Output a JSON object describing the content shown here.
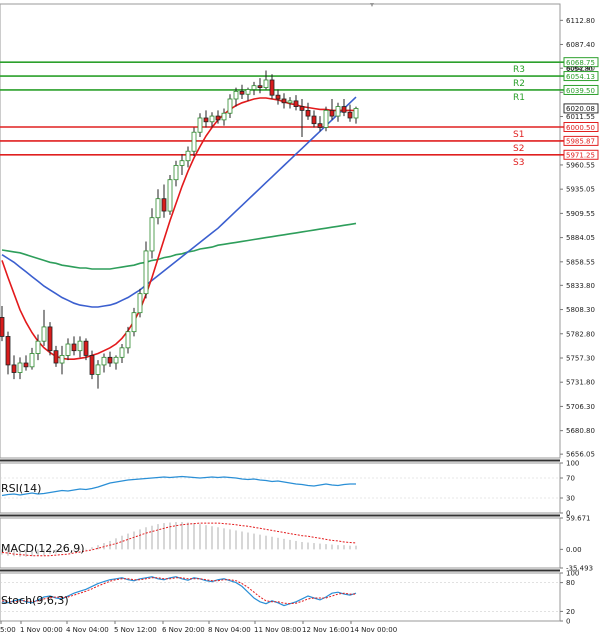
{
  "chart_data": [
    {
      "type": "candlestick",
      "panel": "price",
      "y_ticks": [
        6112.8,
        6087.4,
        6062.4,
        6037.0,
        6011.55,
        5986.1,
        5960.55,
        5935.05,
        5909.55,
        5884.05,
        5858.55,
        5833.8,
        5808.3,
        5782.8,
        5757.3,
        5731.8,
        5706.3,
        5680.8,
        5656.05
      ],
      "ylim": [
        5652,
        6130
      ],
      "levels": [
        {
          "name": "R3",
          "value": 6068.75,
          "label": "6068.75",
          "color": "#2ca02c"
        },
        {
          "name": "R2",
          "value": 6054.13,
          "label": "6054.13",
          "color": "#2ca02c"
        },
        {
          "name": "R1",
          "value": 6039.5,
          "label": "6039.50",
          "color": "#2ca02c"
        },
        {
          "name": "S1",
          "value": 6000.5,
          "label": "6000.50",
          "color": "#e02020"
        },
        {
          "name": "S2",
          "value": 5985.87,
          "label": "5985.87",
          "color": "#e02020"
        },
        {
          "name": "S3",
          "value": 5971.25,
          "label": "5971.25",
          "color": "#e02020"
        }
      ],
      "current_price": "6020.08",
      "extra_price_label": "6054.80",
      "candles_ohlc": [
        [
          5800,
          5812,
          5775,
          5780
        ],
        [
          5780,
          5785,
          5740,
          5750
        ],
        [
          5750,
          5760,
          5735,
          5742
        ],
        [
          5742,
          5758,
          5735,
          5752
        ],
        [
          5752,
          5760,
          5744,
          5748
        ],
        [
          5748,
          5768,
          5745,
          5762
        ],
        [
          5762,
          5782,
          5755,
          5775
        ],
        [
          5775,
          5808,
          5770,
          5790
        ],
        [
          5790,
          5795,
          5760,
          5765
        ],
        [
          5765,
          5770,
          5748,
          5752
        ],
        [
          5752,
          5770,
          5740,
          5760
        ],
        [
          5760,
          5778,
          5755,
          5772
        ],
        [
          5772,
          5780,
          5760,
          5765
        ],
        [
          5765,
          5780,
          5758,
          5775
        ],
        [
          5775,
          5778,
          5755,
          5760
        ],
        [
          5760,
          5765,
          5735,
          5740
        ],
        [
          5740,
          5755,
          5725,
          5750
        ],
        [
          5750,
          5762,
          5742,
          5758
        ],
        [
          5758,
          5764,
          5748,
          5752
        ],
        [
          5752,
          5760,
          5745,
          5758
        ],
        [
          5758,
          5772,
          5752,
          5768
        ],
        [
          5768,
          5790,
          5762,
          5785
        ],
        [
          5785,
          5810,
          5780,
          5805
        ],
        [
          5805,
          5830,
          5800,
          5825
        ],
        [
          5825,
          5880,
          5820,
          5870
        ],
        [
          5870,
          5915,
          5862,
          5905
        ],
        [
          5905,
          5935,
          5898,
          5925
        ],
        [
          5925,
          5940,
          5905,
          5912
        ],
        [
          5912,
          5950,
          5908,
          5945
        ],
        [
          5945,
          5965,
          5938,
          5960
        ],
        [
          5960,
          5972,
          5950,
          5965
        ],
        [
          5965,
          5980,
          5958,
          5975
        ],
        [
          5975,
          6000,
          5970,
          5995
        ],
        [
          5995,
          6015,
          5990,
          6010
        ],
        [
          6010,
          6018,
          6000,
          6006
        ],
        [
          6006,
          6016,
          6000,
          6012
        ],
        [
          6012,
          6018,
          6004,
          6008
        ],
        [
          6008,
          6020,
          6002,
          6015
        ],
        [
          6015,
          6035,
          6010,
          6030
        ],
        [
          6030,
          6042,
          6022,
          6038
        ],
        [
          6038,
          6045,
          6030,
          6035
        ],
        [
          6035,
          6042,
          6028,
          6040
        ],
        [
          6040,
          6048,
          6034,
          6044
        ],
        [
          6044,
          6052,
          6036,
          6042
        ],
        [
          6042,
          6060,
          6040,
          6050
        ],
        [
          6050,
          6056,
          6030,
          6034
        ],
        [
          6034,
          6040,
          6024,
          6030
        ],
        [
          6030,
          6036,
          6020,
          6026
        ],
        [
          6026,
          6032,
          6020,
          6028
        ],
        [
          6028,
          6034,
          6018,
          6022
        ],
        [
          6022,
          6030,
          5990,
          6018
        ],
        [
          6018,
          6026,
          6008,
          6012
        ],
        [
          6012,
          6018,
          6000,
          6004
        ],
        [
          6004,
          6012,
          5996,
          6000
        ],
        [
          6000,
          6022,
          5996,
          6018
        ],
        [
          6018,
          6030,
          6008,
          6012
        ],
        [
          6012,
          6026,
          6006,
          6022
        ],
        [
          6022,
          6030,
          6012,
          6016
        ],
        [
          6016,
          6024,
          6006,
          6010
        ],
        [
          6010,
          6022,
          6004,
          6020
        ]
      ],
      "ma_fast": [
        5860,
        5842,
        5825,
        5808,
        5795,
        5784,
        5775,
        5768,
        5763,
        5759,
        5757,
        5756,
        5756,
        5757,
        5758,
        5760,
        5762,
        5765,
        5768,
        5772,
        5778,
        5786,
        5796,
        5808,
        5824,
        5842,
        5862,
        5882,
        5902,
        5920,
        5938,
        5954,
        5968,
        5980,
        5991,
        6000,
        6008,
        6014,
        6019,
        6023,
        6026,
        6028,
        6030,
        6031,
        6031,
        6030,
        6029,
        6027,
        6025,
        6024,
        6022,
        6021,
        6020,
        6019,
        6019,
        6018,
        6018,
        6018,
        6018,
        6018
      ],
      "ma_mid": [
        5866,
        5862,
        5858,
        5853,
        5848,
        5843,
        5838,
        5833,
        5829,
        5825,
        5821,
        5818,
        5815,
        5813,
        5812,
        5811,
        5811,
        5812,
        5813,
        5815,
        5818,
        5821,
        5825,
        5829,
        5834,
        5839,
        5844,
        5849,
        5854,
        5859,
        5864,
        5869,
        5874,
        5879,
        5884,
        5889,
        5894,
        5900,
        5906,
        5912,
        5918,
        5924,
        5930,
        5936,
        5942,
        5948,
        5954,
        5960,
        5966,
        5972,
        5978,
        5984,
        5990,
        5996,
        6002,
        6008,
        6014,
        6020,
        6026,
        6032
      ],
      "ma_slow": [
        5871,
        5870,
        5869,
        5868,
        5866,
        5864,
        5862,
        5860,
        5858,
        5857,
        5855,
        5854,
        5853,
        5852,
        5852,
        5851,
        5851,
        5851,
        5851,
        5852,
        5853,
        5854,
        5855,
        5857,
        5858,
        5860,
        5861,
        5863,
        5864,
        5866,
        5867,
        5869,
        5870,
        5872,
        5873,
        5874,
        5876,
        5877,
        5878,
        5879,
        5880,
        5881,
        5882,
        5883,
        5884,
        5885,
        5886,
        5887,
        5888,
        5889,
        5890,
        5891,
        5892,
        5893,
        5894,
        5895,
        5896,
        5897,
        5898,
        5899
      ]
    },
    {
      "type": "line",
      "panel": "rsi",
      "label": "RSI(14)",
      "y_ticks": [
        100,
        70,
        30,
        0
      ],
      "ylim": [
        0,
        100
      ],
      "values": [
        35,
        37,
        38,
        36,
        38,
        40,
        38,
        39,
        41,
        43,
        45,
        44,
        46,
        48,
        47,
        49,
        52,
        56,
        60,
        62,
        64,
        66,
        67,
        68,
        69,
        70,
        71,
        72,
        71,
        72,
        73,
        72,
        71,
        70,
        71,
        72,
        71,
        72,
        71,
        70,
        68,
        67,
        68,
        66,
        65,
        63,
        64,
        62,
        60,
        58,
        57,
        55,
        54,
        56,
        58,
        56,
        55,
        57,
        58,
        58
      ]
    },
    {
      "type": "bar+line",
      "panel": "macd",
      "label": "MACD(12,26,9)",
      "y_ticks": [
        59.671,
        0.0,
        -35.493
      ],
      "ylim": [
        -35.493,
        59.671
      ],
      "histogram": [
        -10,
        -12,
        -13,
        -14,
        -14,
        -13,
        -12,
        -11,
        -9,
        -8,
        -6,
        -5,
        -3,
        -1,
        1,
        4,
        8,
        12,
        16,
        21,
        26,
        30,
        34,
        38,
        42,
        45,
        48,
        50,
        51,
        52,
        52,
        51,
        50,
        48,
        46,
        44,
        42,
        40,
        38,
        36,
        34,
        32,
        30,
        28,
        26,
        24,
        22,
        20,
        18,
        16,
        14,
        13,
        12,
        11,
        10,
        9,
        8,
        8,
        7,
        7
      ],
      "signal": [
        -6,
        -7,
        -9,
        -10,
        -11,
        -12,
        -12,
        -12,
        -12,
        -11,
        -10,
        -9,
        -7,
        -5,
        -3,
        -1,
        2,
        5,
        8,
        11,
        15,
        19,
        23,
        27,
        31,
        34,
        37,
        40,
        43,
        45,
        47,
        48,
        49,
        50,
        50,
        50,
        50,
        49,
        48,
        47,
        45,
        44,
        42,
        40,
        38,
        36,
        34,
        32,
        30,
        28,
        26,
        25,
        23,
        21,
        19,
        17,
        16,
        14,
        13,
        12
      ]
    },
    {
      "type": "line",
      "panel": "stoch",
      "label": "Stoch(9,6,3)",
      "y_ticks": [
        100,
        80,
        20,
        0
      ],
      "ylim": [
        0,
        100
      ],
      "k": [
        40,
        38,
        42,
        45,
        40,
        38,
        44,
        50,
        52,
        48,
        46,
        52,
        58,
        62,
        66,
        72,
        78,
        82,
        86,
        88,
        90,
        86,
        84,
        88,
        90,
        92,
        88,
        86,
        90,
        92,
        88,
        85,
        90,
        88,
        84,
        82,
        86,
        88,
        84,
        80,
        72,
        60,
        48,
        40,
        36,
        42,
        38,
        32,
        36,
        40,
        46,
        52,
        48,
        44,
        50,
        58,
        60,
        56,
        54,
        58
      ],
      "d": [
        42,
        40,
        40,
        42,
        42,
        40,
        42,
        46,
        49,
        50,
        49,
        50,
        54,
        58,
        62,
        67,
        73,
        78,
        83,
        86,
        88,
        88,
        86,
        86,
        88,
        90,
        90,
        88,
        88,
        90,
        90,
        88,
        88,
        88,
        86,
        84,
        84,
        86,
        86,
        84,
        78,
        70,
        60,
        50,
        42,
        40,
        40,
        37,
        36,
        37,
        41,
        46,
        48,
        48,
        48,
        52,
        56,
        58,
        56,
        56
      ]
    }
  ],
  "x_tick_labels": [
    "5:00",
    "1 Nov 00:00",
    "4 Nov 04:00",
    "5 Nov 12:00",
    "6 Nov 20:00",
    "8 Nov 04:00",
    "11 Nov 08:00",
    "12 Nov 16:00",
    "14 Nov 00:00"
  ],
  "colors": {
    "bull_candle": "#2e8b2e",
    "bear_candle": "#d91c1c",
    "ma_fast": "#e31a1c",
    "ma_mid": "#3b5fcf",
    "ma_slow": "#2e9e5b",
    "rsi": "#2a8fd6",
    "macd_hist": "#bcbcbc",
    "macd_signal": "#e31a1c",
    "stoch_k": "#2a8fd6",
    "stoch_d": "#e31a1c"
  }
}
